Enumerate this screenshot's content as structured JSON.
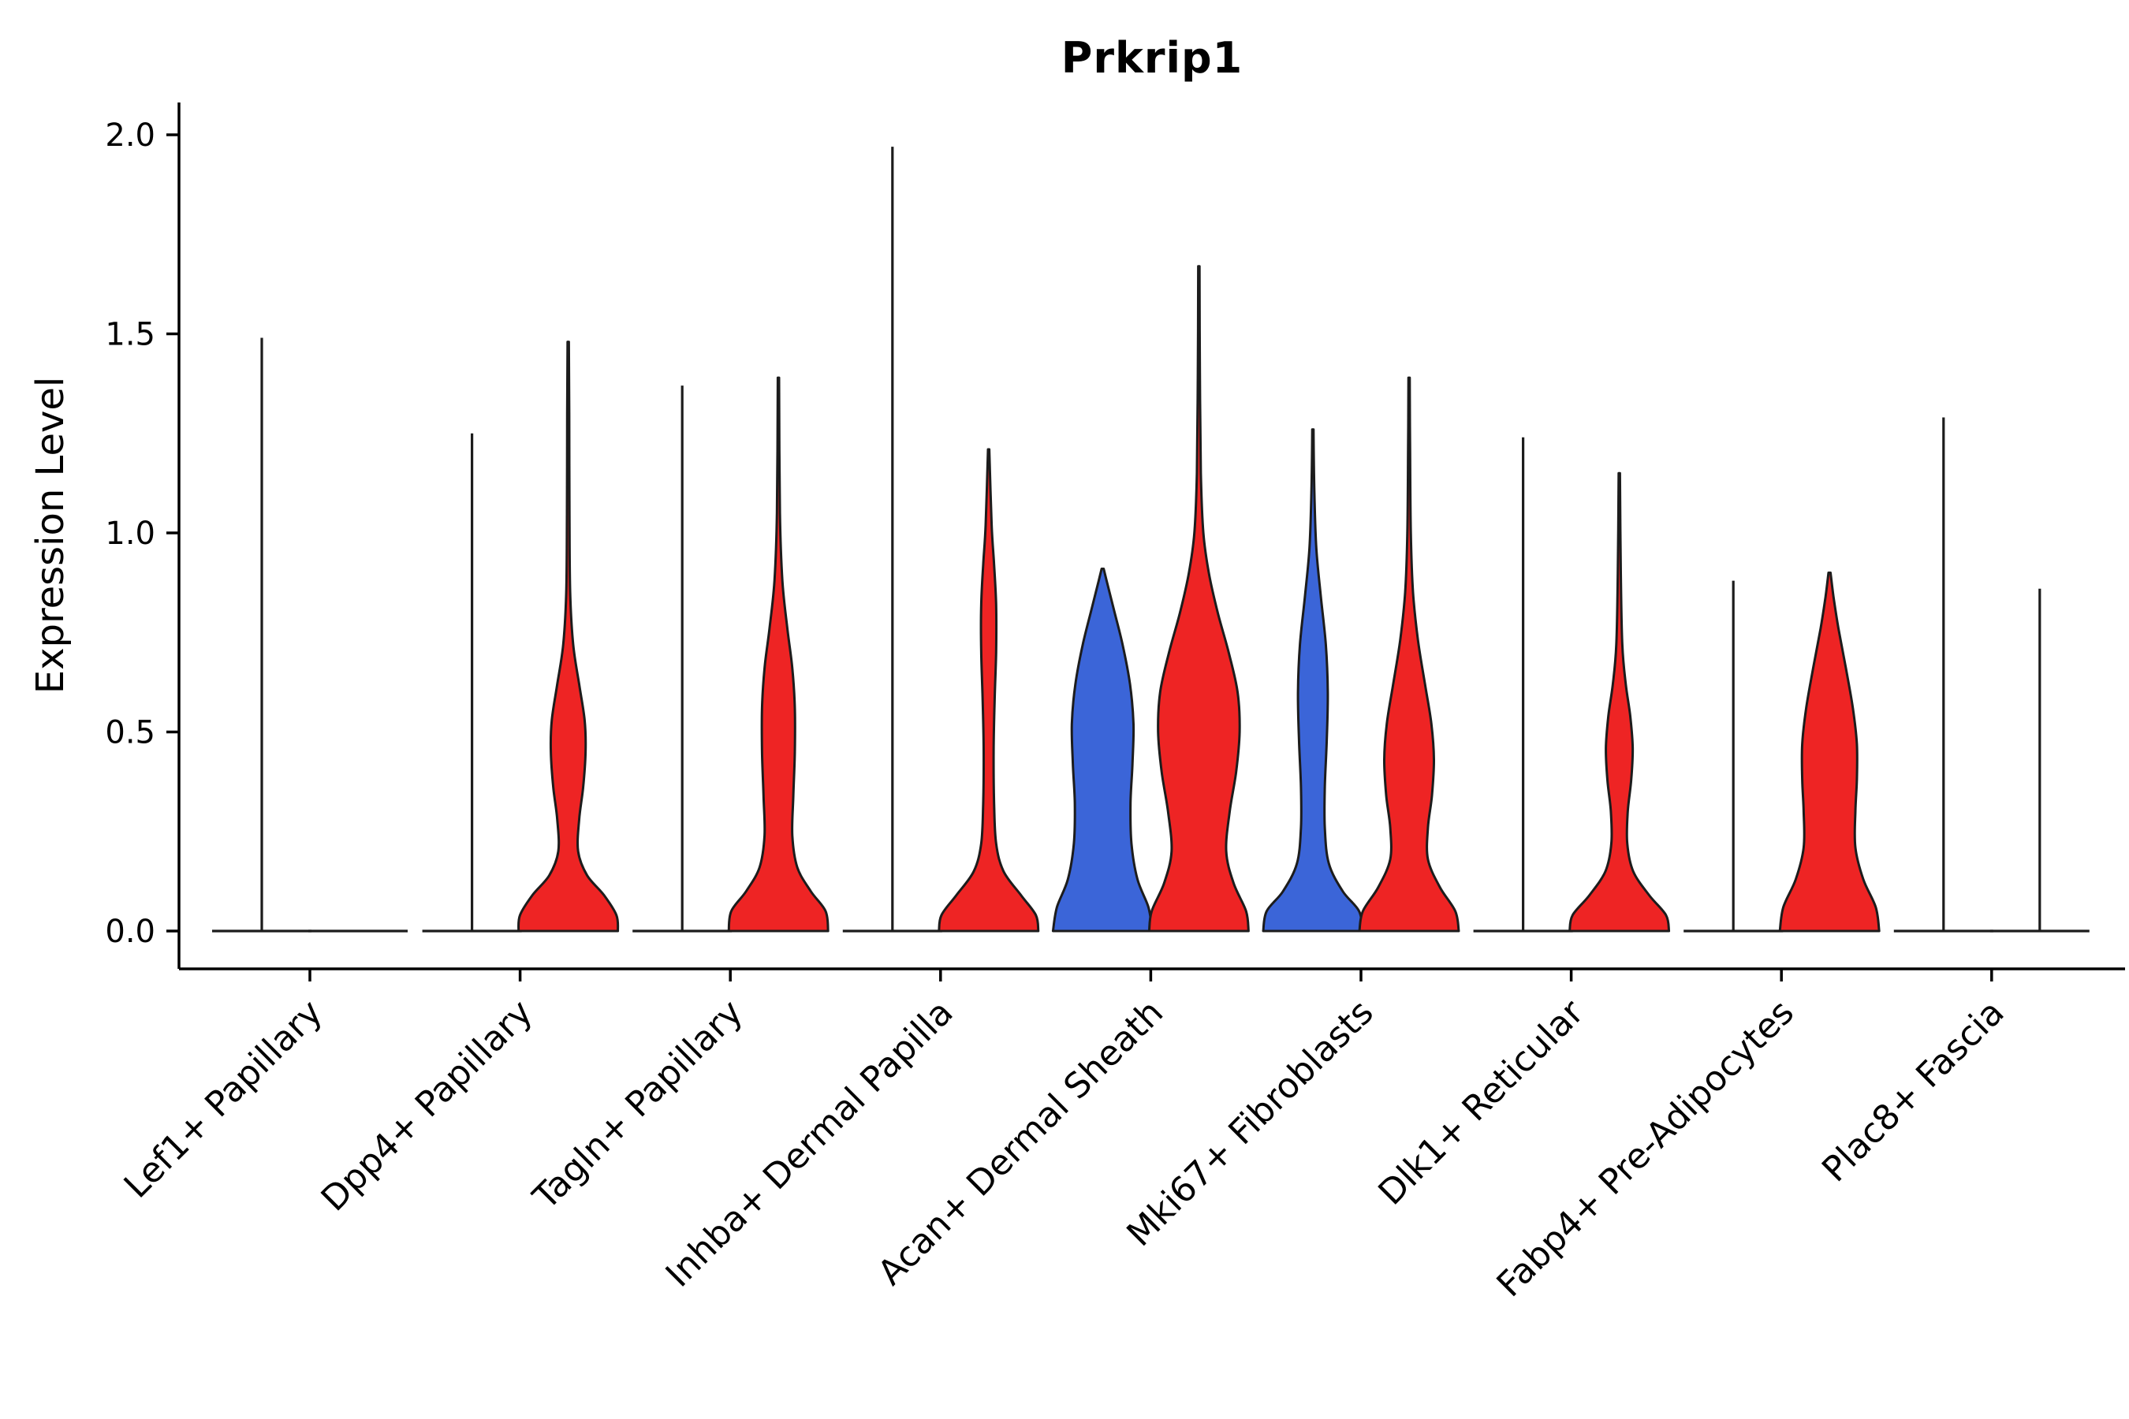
{
  "chart_data": {
    "type": "violin",
    "title": "Prkrip1",
    "xlabel": "",
    "ylabel": "Expression Level",
    "ylim": [
      0,
      2.05
    ],
    "yticks": [
      0.0,
      0.5,
      1.0,
      1.5,
      2.0
    ],
    "ytick_labels": [
      "0.0",
      "0.5",
      "1.0",
      "1.5",
      "2.0"
    ],
    "grid": false,
    "legend": "none",
    "outline": "#1c1c1c",
    "groups": [
      {
        "side": "left",
        "color": "#3b65d8"
      },
      {
        "side": "right",
        "color": "#ee2424"
      }
    ],
    "categories": [
      "Lef1+ Papillary",
      "Dpp4+ Papillary",
      "Tagln+ Papillary",
      "Inhba+ Dermal Papilla",
      "Acan+ Dermal Sheath",
      "Mki67+ Fibroblasts",
      "Dlk1+ Reticular",
      "Fabp4+ Pre-Adipocytes",
      "Plac8+ Fascia"
    ],
    "violins": [
      {
        "category": "Lef1+ Papillary",
        "left": {
          "shape": "spike",
          "max": 1.49,
          "color": "#3b65d8"
        },
        "right": {
          "shape": "flat",
          "max": 0.0,
          "color": "#ee2424"
        }
      },
      {
        "category": "Dpp4+ Papillary",
        "left": {
          "shape": "spike",
          "max": 1.25,
          "color": "#3b65d8"
        },
        "right": {
          "shape": "density",
          "max": 1.48,
          "color": "#ee2424",
          "profile": [
            [
              0,
              1.0
            ],
            [
              0.04,
              0.97
            ],
            [
              0.09,
              0.72
            ],
            [
              0.14,
              0.38
            ],
            [
              0.2,
              0.2
            ],
            [
              0.28,
              0.22
            ],
            [
              0.36,
              0.3
            ],
            [
              0.45,
              0.35
            ],
            [
              0.53,
              0.33
            ],
            [
              0.62,
              0.22
            ],
            [
              0.72,
              0.1
            ],
            [
              0.85,
              0.04
            ],
            [
              1.05,
              0.025
            ],
            [
              1.3,
              0.02
            ],
            [
              1.48,
              0.012
            ]
          ]
        }
      },
      {
        "category": "Tagln+ Papillary",
        "left": {
          "shape": "spike",
          "max": 1.37,
          "color": "#3b65d8"
        },
        "right": {
          "shape": "density",
          "max": 1.39,
          "color": "#ee2424",
          "profile": [
            [
              0,
              1.0
            ],
            [
              0.05,
              0.95
            ],
            [
              0.1,
              0.65
            ],
            [
              0.16,
              0.38
            ],
            [
              0.24,
              0.28
            ],
            [
              0.34,
              0.3
            ],
            [
              0.45,
              0.33
            ],
            [
              0.56,
              0.33
            ],
            [
              0.66,
              0.28
            ],
            [
              0.76,
              0.18
            ],
            [
              0.88,
              0.08
            ],
            [
              1.05,
              0.03
            ],
            [
              1.39,
              0.012
            ]
          ]
        }
      },
      {
        "category": "Inhba+ Dermal Papilla",
        "left": {
          "shape": "spike",
          "max": 1.97,
          "color": "#3b65d8"
        },
        "right": {
          "shape": "density",
          "max": 1.21,
          "color": "#ee2424",
          "profile": [
            [
              0,
              1.0
            ],
            [
              0.04,
              0.95
            ],
            [
              0.09,
              0.65
            ],
            [
              0.15,
              0.3
            ],
            [
              0.22,
              0.15
            ],
            [
              0.32,
              0.11
            ],
            [
              0.45,
              0.1
            ],
            [
              0.58,
              0.12
            ],
            [
              0.7,
              0.15
            ],
            [
              0.82,
              0.15
            ],
            [
              0.92,
              0.11
            ],
            [
              1.02,
              0.06
            ],
            [
              1.21,
              0.012
            ]
          ]
        }
      },
      {
        "category": "Acan+ Dermal Sheath",
        "left": {
          "shape": "density",
          "max": 0.91,
          "color": "#3b65d8",
          "profile": [
            [
              0,
              1.0
            ],
            [
              0.06,
              0.92
            ],
            [
              0.13,
              0.7
            ],
            [
              0.22,
              0.58
            ],
            [
              0.32,
              0.56
            ],
            [
              0.42,
              0.6
            ],
            [
              0.52,
              0.62
            ],
            [
              0.62,
              0.55
            ],
            [
              0.72,
              0.4
            ],
            [
              0.81,
              0.22
            ],
            [
              0.88,
              0.08
            ],
            [
              0.91,
              0.02
            ]
          ]
        },
        "right": {
          "shape": "density",
          "max": 1.67,
          "color": "#ee2424",
          "profile": [
            [
              0,
              1.0
            ],
            [
              0.05,
              0.95
            ],
            [
              0.12,
              0.7
            ],
            [
              0.2,
              0.55
            ],
            [
              0.3,
              0.62
            ],
            [
              0.4,
              0.75
            ],
            [
              0.5,
              0.82
            ],
            [
              0.6,
              0.78
            ],
            [
              0.7,
              0.6
            ],
            [
              0.8,
              0.38
            ],
            [
              0.9,
              0.2
            ],
            [
              1.0,
              0.09
            ],
            [
              1.15,
              0.04
            ],
            [
              1.4,
              0.02
            ],
            [
              1.67,
              0.012
            ]
          ]
        }
      },
      {
        "category": "Mki67+ Fibroblasts",
        "left": {
          "shape": "density",
          "max": 1.26,
          "color": "#3b65d8",
          "profile": [
            [
              0,
              1.0
            ],
            [
              0.05,
              0.93
            ],
            [
              0.1,
              0.6
            ],
            [
              0.17,
              0.32
            ],
            [
              0.26,
              0.24
            ],
            [
              0.36,
              0.24
            ],
            [
              0.48,
              0.28
            ],
            [
              0.6,
              0.3
            ],
            [
              0.72,
              0.26
            ],
            [
              0.84,
              0.16
            ],
            [
              0.96,
              0.07
            ],
            [
              1.1,
              0.03
            ],
            [
              1.26,
              0.012
            ]
          ]
        },
        "right": {
          "shape": "density",
          "max": 1.39,
          "color": "#ee2424",
          "profile": [
            [
              0,
              1.0
            ],
            [
              0.05,
              0.93
            ],
            [
              0.11,
              0.62
            ],
            [
              0.18,
              0.38
            ],
            [
              0.26,
              0.38
            ],
            [
              0.34,
              0.46
            ],
            [
              0.43,
              0.5
            ],
            [
              0.52,
              0.45
            ],
            [
              0.62,
              0.32
            ],
            [
              0.73,
              0.18
            ],
            [
              0.85,
              0.08
            ],
            [
              1.0,
              0.035
            ],
            [
              1.2,
              0.02
            ],
            [
              1.39,
              0.012
            ]
          ]
        }
      },
      {
        "category": "Dlk1+ Reticular",
        "left": {
          "shape": "spike",
          "max": 1.24,
          "color": "#3b65d8"
        },
        "right": {
          "shape": "density",
          "max": 1.15,
          "color": "#ee2424",
          "profile": [
            [
              0,
              1.0
            ],
            [
              0.04,
              0.94
            ],
            [
              0.09,
              0.6
            ],
            [
              0.15,
              0.28
            ],
            [
              0.22,
              0.16
            ],
            [
              0.3,
              0.17
            ],
            [
              0.38,
              0.24
            ],
            [
              0.46,
              0.27
            ],
            [
              0.54,
              0.22
            ],
            [
              0.62,
              0.13
            ],
            [
              0.72,
              0.06
            ],
            [
              0.9,
              0.03
            ],
            [
              1.15,
              0.012
            ]
          ]
        }
      },
      {
        "category": "Fabp4+ Pre-Adipocytes",
        "left": {
          "shape": "spike",
          "max": 0.88,
          "color": "#3b65d8"
        },
        "right": {
          "shape": "density",
          "max": 0.9,
          "color": "#ee2424",
          "profile": [
            [
              0,
              1.0
            ],
            [
              0.06,
              0.93
            ],
            [
              0.13,
              0.68
            ],
            [
              0.21,
              0.52
            ],
            [
              0.3,
              0.52
            ],
            [
              0.38,
              0.55
            ],
            [
              0.47,
              0.55
            ],
            [
              0.56,
              0.47
            ],
            [
              0.66,
              0.33
            ],
            [
              0.76,
              0.18
            ],
            [
              0.84,
              0.08
            ],
            [
              0.9,
              0.02
            ]
          ]
        }
      },
      {
        "category": "Plac8+ Fascia",
        "left": {
          "shape": "spike",
          "max": 1.29,
          "color": "#3b65d8"
        },
        "right": {
          "shape": "spike",
          "max": 0.86,
          "color": "#ee2424"
        }
      }
    ]
  }
}
